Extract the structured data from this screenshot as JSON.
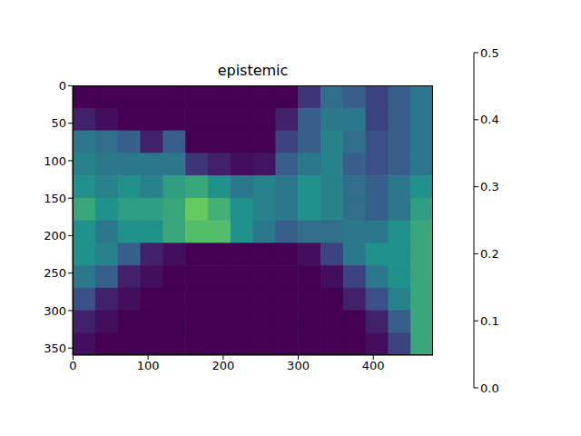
{
  "chart_data": {
    "type": "heatmap",
    "title": "epistemic",
    "x": [
      15,
      45,
      75,
      105,
      135,
      165,
      195,
      225,
      255,
      285,
      315,
      345,
      375,
      405,
      435,
      465
    ],
    "y": [
      15,
      45,
      75,
      105,
      135,
      165,
      195,
      225,
      255,
      285,
      315,
      345
    ],
    "cells": [
      [
        0,
        0,
        0,
        0,
        0,
        0,
        0,
        0,
        0,
        0,
        0.08,
        0.18,
        0.15,
        0.1,
        0.15,
        0.2
      ],
      [
        0.05,
        0.02,
        0,
        0,
        0,
        0,
        0,
        0,
        0,
        0.05,
        0.15,
        0.2,
        0.2,
        0.1,
        0.15,
        0.2
      ],
      [
        0.2,
        0.18,
        0.15,
        0.05,
        0.15,
        0,
        0,
        0,
        0,
        0.1,
        0.15,
        0.22,
        0.18,
        0.12,
        0.15,
        0.2
      ],
      [
        0.22,
        0.2,
        0.2,
        0.2,
        0.2,
        0.08,
        0.05,
        0.02,
        0.03,
        0.15,
        0.2,
        0.22,
        0.15,
        0.12,
        0.15,
        0.2
      ],
      [
        0.25,
        0.22,
        0.25,
        0.22,
        0.28,
        0.3,
        0.25,
        0.2,
        0.22,
        0.2,
        0.25,
        0.22,
        0.18,
        0.15,
        0.2,
        0.25
      ],
      [
        0.3,
        0.25,
        0.28,
        0.28,
        0.3,
        0.38,
        0.32,
        0.25,
        0.22,
        0.2,
        0.25,
        0.22,
        0.18,
        0.15,
        0.2,
        0.28
      ],
      [
        0.25,
        0.2,
        0.25,
        0.25,
        0.3,
        0.35,
        0.35,
        0.25,
        0.2,
        0.15,
        0.18,
        0.18,
        0.2,
        0.2,
        0.25,
        0.3
      ],
      [
        0.25,
        0.22,
        0.15,
        0.05,
        0.02,
        0,
        0,
        0,
        0,
        0,
        0.02,
        0.1,
        0.2,
        0.25,
        0.25,
        0.3
      ],
      [
        0.2,
        0.15,
        0.05,
        0.02,
        0,
        0,
        0,
        0,
        0,
        0,
        0,
        0.02,
        0.1,
        0.2,
        0.25,
        0.3
      ],
      [
        0.12,
        0.05,
        0.02,
        0,
        0,
        0,
        0,
        0,
        0,
        0,
        0,
        0,
        0.05,
        0.12,
        0.22,
        0.3
      ],
      [
        0.05,
        0.02,
        0,
        0,
        0,
        0,
        0,
        0,
        0,
        0,
        0,
        0,
        0,
        0.05,
        0.15,
        0.3
      ],
      [
        0.02,
        0,
        0,
        0,
        0,
        0,
        0,
        0,
        0,
        0,
        0,
        0,
        0,
        0.02,
        0.1,
        0.3
      ]
    ],
    "xlim": [
      -0.5,
      479.5
    ],
    "ylim": [
      359.5,
      -0.5
    ],
    "xticks": [
      0,
      100,
      200,
      300,
      400
    ],
    "yticks": [
      0,
      50,
      100,
      150,
      200,
      250,
      300,
      350
    ],
    "colorbar": {
      "range": [
        0,
        0.5
      ],
      "ticks": [
        {
          "value": 0,
          "label": "0.0"
        },
        0.1,
        0.2,
        0.3,
        0.4,
        0.5
      ]
    }
  }
}
